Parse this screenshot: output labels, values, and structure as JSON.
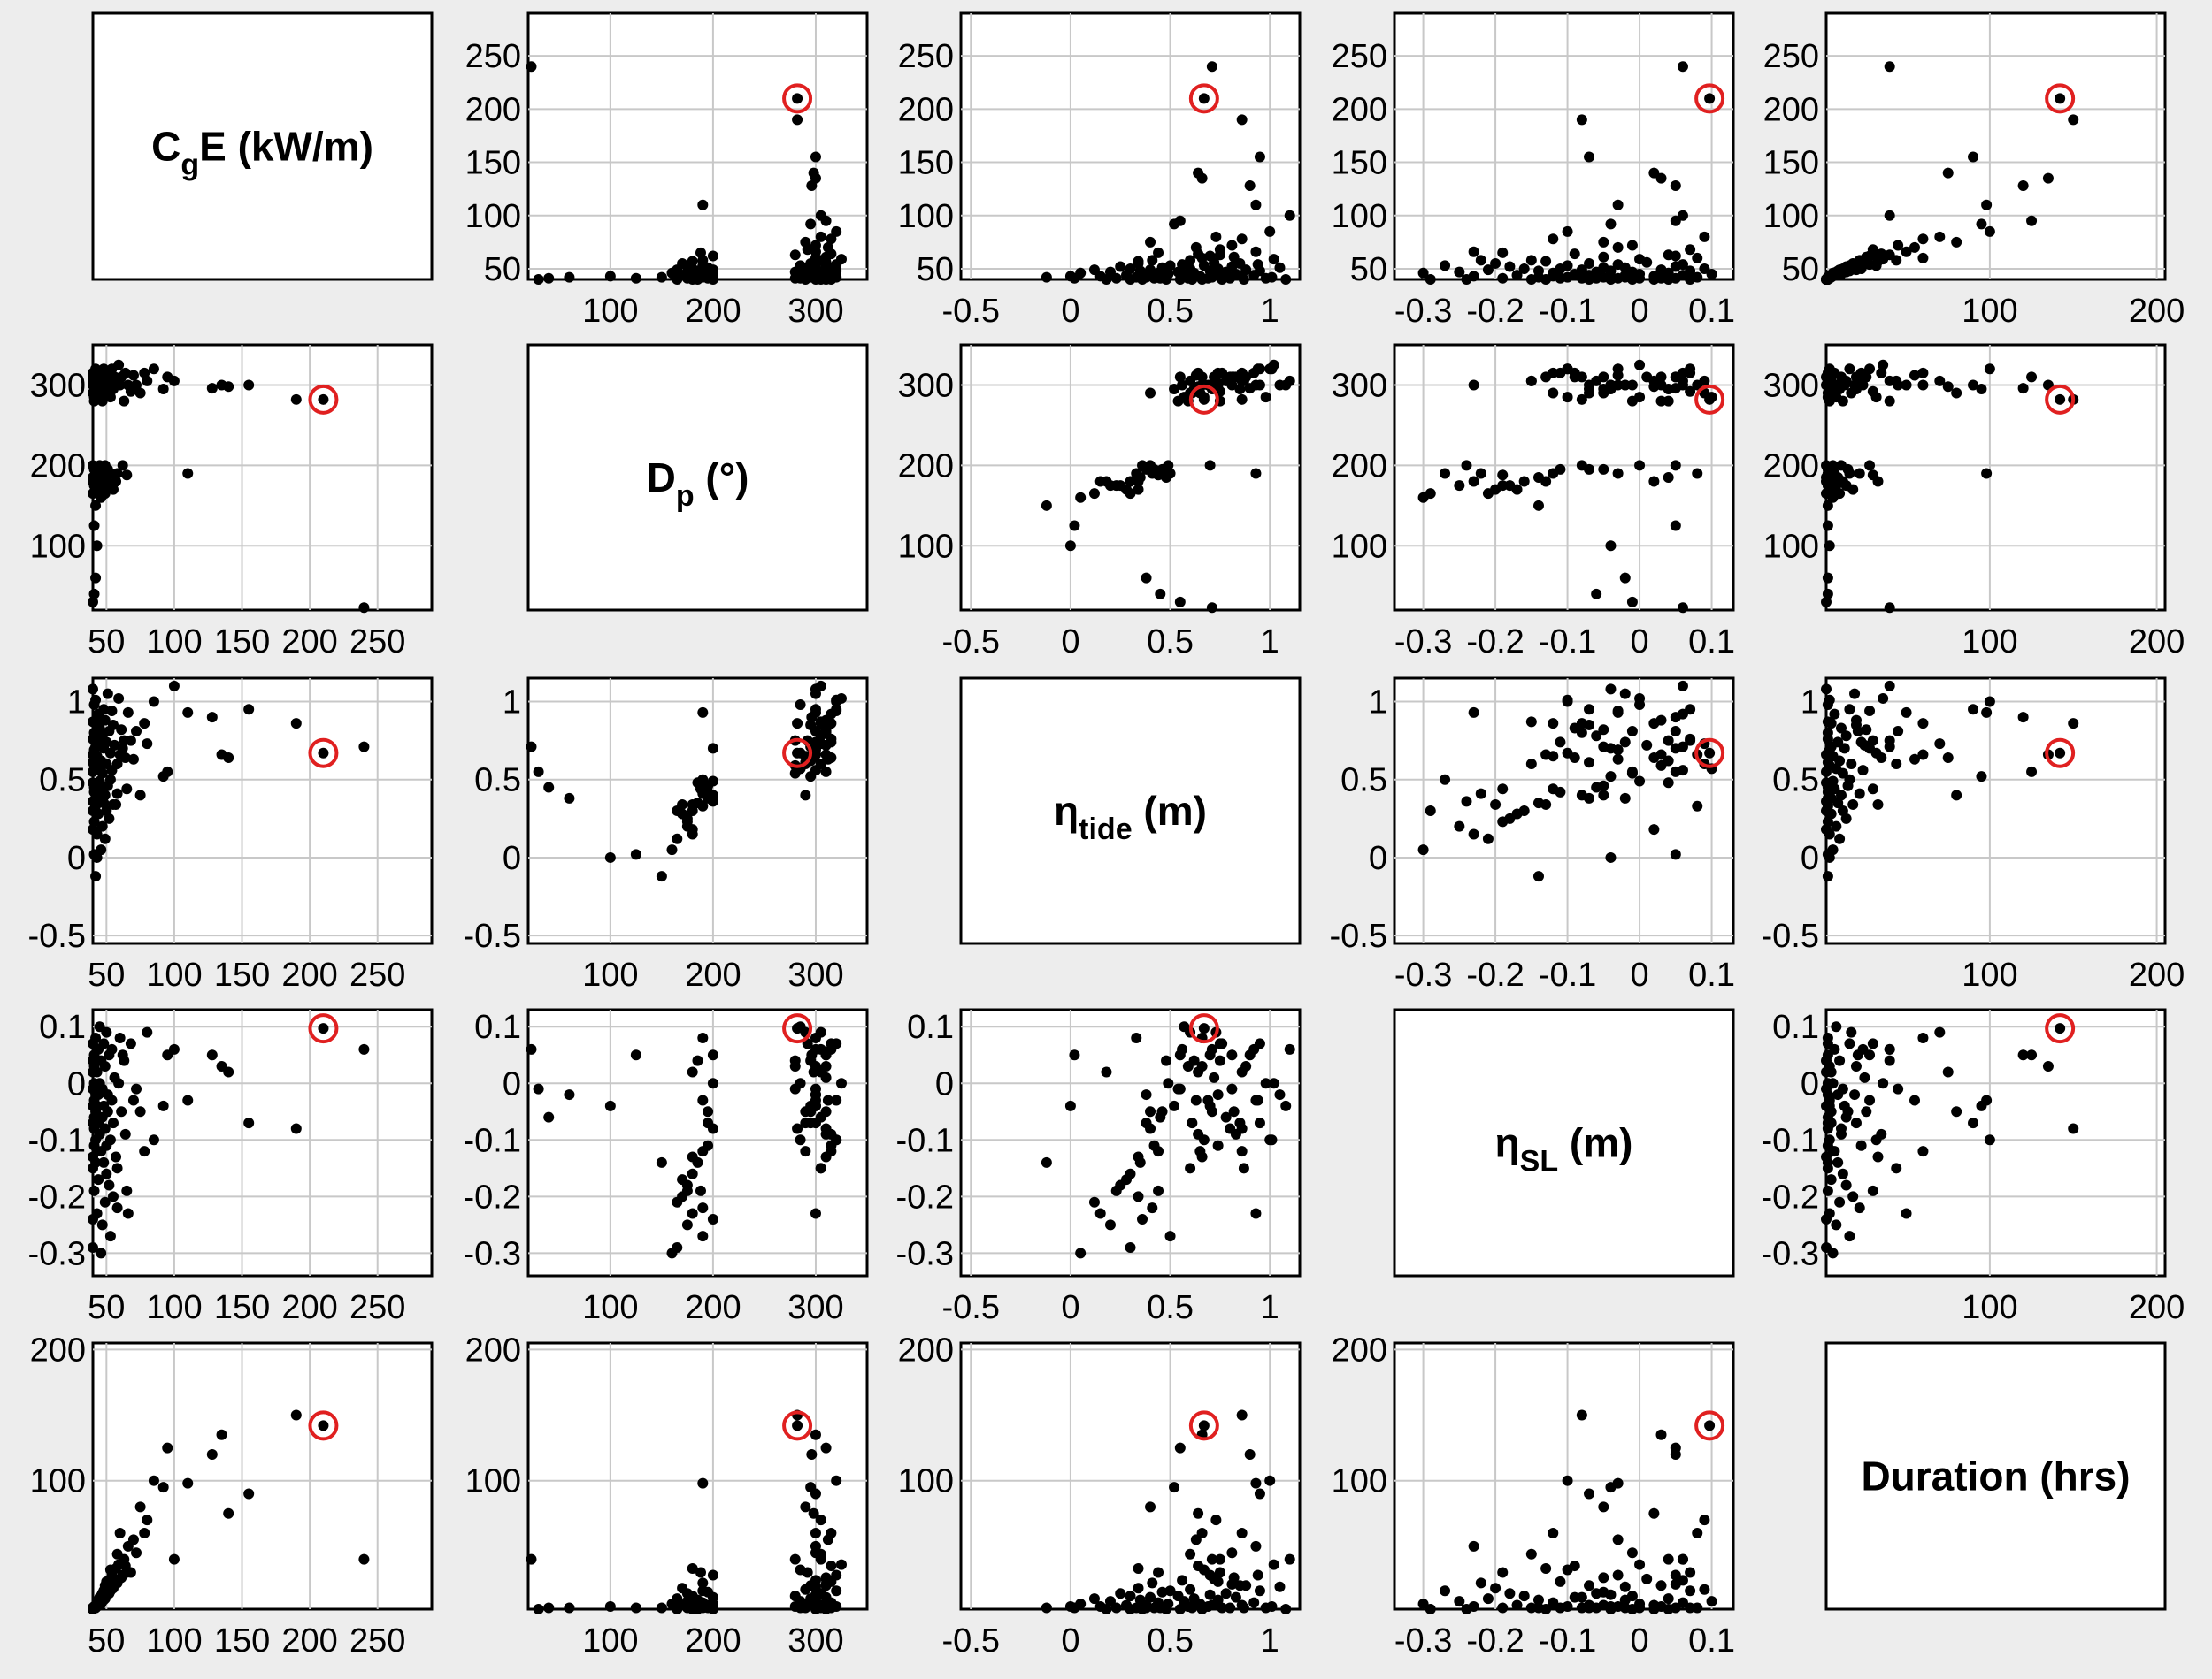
{
  "chart_data": {
    "type": "scatter-matrix",
    "variables": [
      {
        "key": "CgE",
        "label_main": "C",
        "label_sub": "g",
        "label_rest": "E (kW/m)",
        "lim": [
          40,
          290
        ],
        "ticks": [
          50,
          100,
          150,
          200,
          250
        ],
        "tick_labels": [
          "50",
          "100",
          "150",
          "200",
          "250"
        ]
      },
      {
        "key": "Dp",
        "label_main": "D",
        "label_sub": "p",
        "label_rest": " (°)",
        "lim": [
          20,
          350
        ],
        "ticks": [
          100,
          200,
          300
        ],
        "tick_labels": [
          "100",
          "200",
          "300"
        ]
      },
      {
        "key": "tide",
        "label_main": "η",
        "label_sub": "tide",
        "label_rest": " (m)",
        "lim": [
          -0.55,
          1.15
        ],
        "ticks": [
          -0.5,
          0,
          0.5,
          1
        ],
        "tick_labels": [
          "-0.5",
          "0",
          "0.5",
          "1"
        ]
      },
      {
        "key": "SL",
        "label_main": "η",
        "label_sub": "SL",
        "label_rest": " (m)",
        "lim": [
          -0.34,
          0.13
        ],
        "ticks": [
          -0.3,
          -0.2,
          -0.1,
          0,
          0.1
        ],
        "tick_labels": [
          "-0.3",
          "-0.2",
          "-0.1",
          "0",
          "0.1"
        ]
      },
      {
        "key": "Dur",
        "label_main": "Duration (hrs)",
        "label_sub": "",
        "label_rest": "",
        "lim": [
          2,
          205
        ],
        "ticks": [
          100,
          200
        ],
        "tick_labels": [
          "100",
          "200"
        ]
      }
    ],
    "highlight_point": {
      "CgE": 210,
      "Dp": 282,
      "tide": 0.67,
      "SL": 0.097,
      "Dur": 142
    },
    "marker_colors": {
      "points": "#000000",
      "highlight_ring": "#e02020"
    },
    "points": [
      [
        240,
        23,
        0.71,
        0.06,
        40
      ],
      [
        190,
        282,
        0.86,
        -0.08,
        150
      ],
      [
        155,
        300,
        0.95,
        -0.07,
        90
      ],
      [
        140,
        298,
        0.64,
        0.02,
        75
      ],
      [
        135,
        300,
        0.66,
        0.03,
        135
      ],
      [
        128,
        296,
        0.9,
        0.05,
        120
      ],
      [
        110,
        190,
        0.93,
        -0.03,
        98
      ],
      [
        100,
        305,
        1.1,
        0.06,
        40
      ],
      [
        95,
        310,
        0.55,
        0.05,
        125
      ],
      [
        92,
        295,
        0.52,
        -0.04,
        95
      ],
      [
        85,
        320,
        1.0,
        -0.1,
        100
      ],
      [
        80,
        305,
        0.73,
        0.09,
        70
      ],
      [
        78,
        315,
        0.86,
        -0.12,
        60
      ],
      [
        75,
        290,
        0.4,
        -0.05,
        80
      ],
      [
        72,
        300,
        0.81,
        -0.01,
        45
      ],
      [
        70,
        312,
        0.63,
        -0.03,
        55
      ],
      [
        68,
        292,
        0.75,
        0.07,
        30
      ],
      [
        66,
        300,
        0.93,
        -0.23,
        50
      ],
      [
        65,
        188,
        0.44,
        -0.19,
        30
      ],
      [
        64,
        315,
        0.64,
        -0.09,
        35
      ],
      [
        63,
        280,
        0.75,
        0.04,
        40
      ],
      [
        62,
        200,
        0.7,
        0.05,
        28
      ],
      [
        61,
        310,
        0.82,
        -0.05,
        26
      ],
      [
        60,
        300,
        0.66,
        0.08,
        60
      ],
      [
        59,
        325,
        1.02,
        0.0,
        36
      ],
      [
        58,
        190,
        0.41,
        -0.22,
        22
      ],
      [
        58,
        305,
        0.6,
        -0.15,
        44
      ],
      [
        57,
        180,
        0.34,
        -0.13,
        33
      ],
      [
        56,
        310,
        0.72,
        0.01,
        25
      ],
      [
        55,
        295,
        0.85,
        -0.07,
        20
      ],
      [
        55,
        170,
        0.34,
        -0.2,
        18
      ],
      [
        54,
        300,
        0.56,
        0.06,
        24
      ],
      [
        54,
        320,
        0.94,
        -0.03,
        28
      ],
      [
        53,
        190,
        0.5,
        -0.27,
        16
      ],
      [
        53,
        285,
        0.67,
        -0.1,
        32
      ],
      [
        52,
        310,
        0.81,
        0.05,
        21
      ],
      [
        52,
        175,
        0.25,
        -0.18,
        14
      ],
      [
        51,
        300,
        1.05,
        -0.02,
        19
      ],
      [
        51,
        195,
        0.46,
        -0.05,
        15
      ],
      [
        50,
        315,
        0.74,
        -0.11,
        23
      ],
      [
        50,
        180,
        0.3,
        -0.16,
        12
      ],
      [
        50,
        290,
        0.6,
        0.09,
        17
      ],
      [
        49,
        200,
        0.4,
        -0.08,
        11
      ],
      [
        49,
        310,
        0.88,
        0.03,
        20
      ],
      [
        49,
        165,
        0.12,
        -0.21,
        10
      ],
      [
        48,
        300,
        0.7,
        -0.04,
        13
      ],
      [
        48,
        185,
        0.35,
        -0.14,
        9
      ],
      [
        48,
        320,
        0.95,
        0.07,
        16
      ],
      [
        47,
        280,
        0.54,
        -0.01,
        12
      ],
      [
        47,
        175,
        0.2,
        -0.25,
        8
      ],
      [
        47,
        305,
        0.78,
        -0.06,
        14
      ],
      [
        46,
        190,
        0.44,
        -0.12,
        7
      ],
      [
        46,
        295,
        0.62,
        0.04,
        10
      ],
      [
        46,
        160,
        0.05,
        -0.3,
        6
      ],
      [
        45,
        310,
        0.83,
        -0.09,
        11
      ],
      [
        45,
        200,
        0.49,
        0.0,
        6
      ],
      [
        45,
        285,
        0.57,
        0.1,
        8
      ],
      [
        44,
        170,
        0.28,
        -0.17,
        5
      ],
      [
        44,
        300,
        0.74,
        -0.02,
        9
      ],
      [
        44,
        195,
        0.38,
        -0.07,
        5
      ],
      [
        44,
        315,
        0.92,
        0.06,
        7
      ],
      [
        43,
        180,
        0.15,
        -0.23,
        4
      ],
      [
        43,
        290,
        0.65,
        -0.12,
        6
      ],
      [
        43,
        100,
        0.0,
        -0.04,
        4
      ],
      [
        43,
        305,
        0.86,
        0.02,
        5
      ],
      [
        42,
        150,
        -0.12,
        -0.14,
        3
      ],
      [
        42,
        295,
        0.71,
        -0.05,
        5
      ],
      [
        42,
        190,
        0.33,
        0.08,
        3
      ],
      [
        42,
        320,
        1.01,
        -0.1,
        4
      ],
      [
        42,
        60,
        0.38,
        -0.02,
        3
      ],
      [
        41,
        280,
        0.59,
        0.03,
        4
      ],
      [
        41,
        175,
        0.23,
        -0.19,
        3
      ],
      [
        41,
        310,
        0.8,
        -0.08,
        3
      ],
      [
        41,
        125,
        0.02,
        0.05,
        3
      ],
      [
        41,
        300,
        0.69,
        -0.03,
        4
      ],
      [
        41,
        40,
        0.45,
        -0.06,
        3
      ],
      [
        41,
        195,
        0.42,
        -0.11,
        3
      ],
      [
        41,
        285,
        0.98,
        0.0,
        3
      ],
      [
        40,
        165,
        0.3,
        -0.29,
        2
      ],
      [
        40,
        315,
        0.76,
        0.07,
        3
      ],
      [
        40,
        305,
        0.87,
        -0.15,
        3
      ],
      [
        40,
        185,
        0.48,
        0.04,
        2
      ],
      [
        40,
        290,
        0.61,
        -0.07,
        3
      ],
      [
        40,
        30,
        0.55,
        -0.01,
        2
      ],
      [
        40,
        200,
        0.36,
        -0.24,
        2
      ],
      [
        40,
        300,
        1.08,
        -0.04,
        2
      ],
      [
        40,
        180,
        0.18,
        0.02,
        2
      ],
      [
        40,
        310,
        0.66,
        -0.13,
        2
      ]
    ]
  }
}
